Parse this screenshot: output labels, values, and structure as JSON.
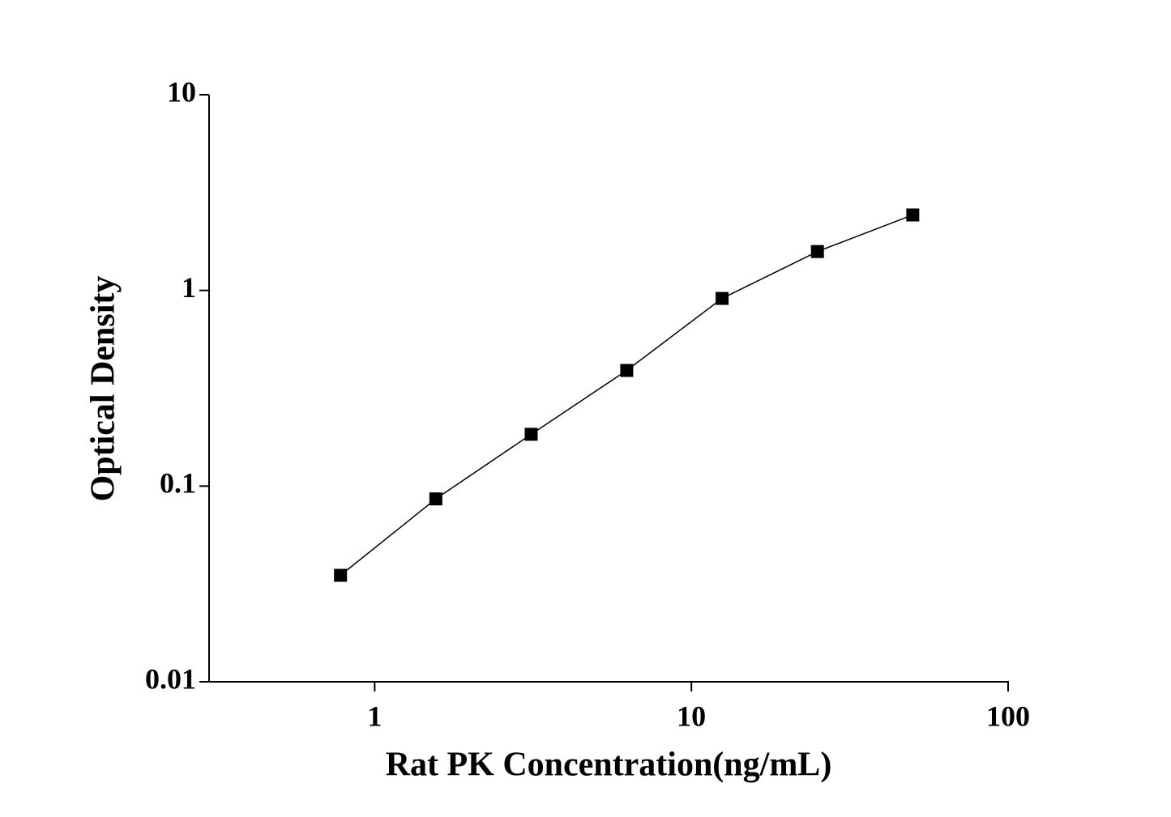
{
  "chart_data": {
    "type": "line",
    "x_label": "Rat PK Concentration(ng/mL)",
    "y_label": "Optical Density",
    "xscale": "log",
    "yscale": "log",
    "xlim": [
      0.3,
      100
    ],
    "ylim": [
      0.01,
      10
    ],
    "xticks": [
      1,
      10,
      100
    ],
    "yticks": [
      0.01,
      0.1,
      1,
      10
    ],
    "series": [
      {
        "color": "#000000",
        "x": [
          0.78,
          1.56,
          3.12,
          6.25,
          12.5,
          25,
          50
        ],
        "values": [
          0.035,
          0.086,
          0.184,
          0.39,
          0.91,
          1.58,
          2.43
        ]
      }
    ]
  }
}
